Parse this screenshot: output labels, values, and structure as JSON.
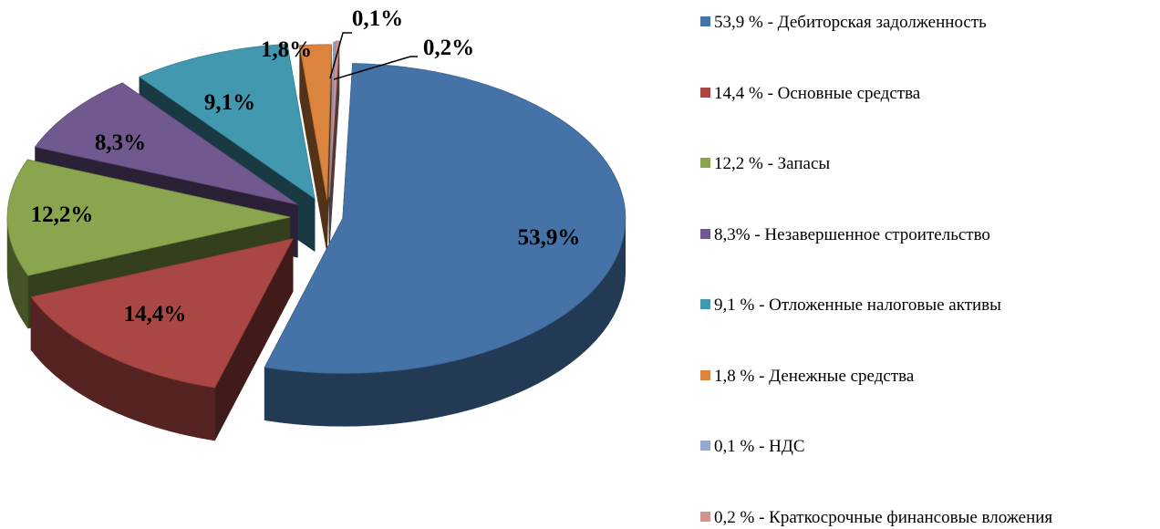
{
  "chart_data": {
    "type": "pie",
    "style": "3d-exploded",
    "legend_position": "right",
    "slices": [
      {
        "label": "53,9%",
        "value": 53.9,
        "legend": "53,9 % - Дебиторская задолженность",
        "color": "#4573A7"
      },
      {
        "label": "14,4%",
        "value": 14.4,
        "legend": "14,4 % - Основные средства",
        "color": "#AA4643"
      },
      {
        "label": "12,2%",
        "value": 12.2,
        "legend": "12,2 % - Запасы",
        "color": "#89A54E"
      },
      {
        "label": "8,3%",
        "value": 8.3,
        "legend": "8,3% - Незавершенное строительство",
        "color": "#71588F"
      },
      {
        "label": "9,1%",
        "value": 9.1,
        "legend": "9,1 % - Отложенные налоговые активы",
        "color": "#4198AF"
      },
      {
        "label": "1,8%",
        "value": 1.8,
        "legend": "1,8 % - Денежные средства",
        "color": "#DB843D"
      },
      {
        "label": "0,1%",
        "value": 0.1,
        "legend": "0,1 % - НДС",
        "color": "#93A9CF"
      },
      {
        "label": "0,2%",
        "value": 0.2,
        "legend": "0,2 % - Краткосрочные финансовые вложения",
        "color": "#D19392"
      }
    ]
  }
}
